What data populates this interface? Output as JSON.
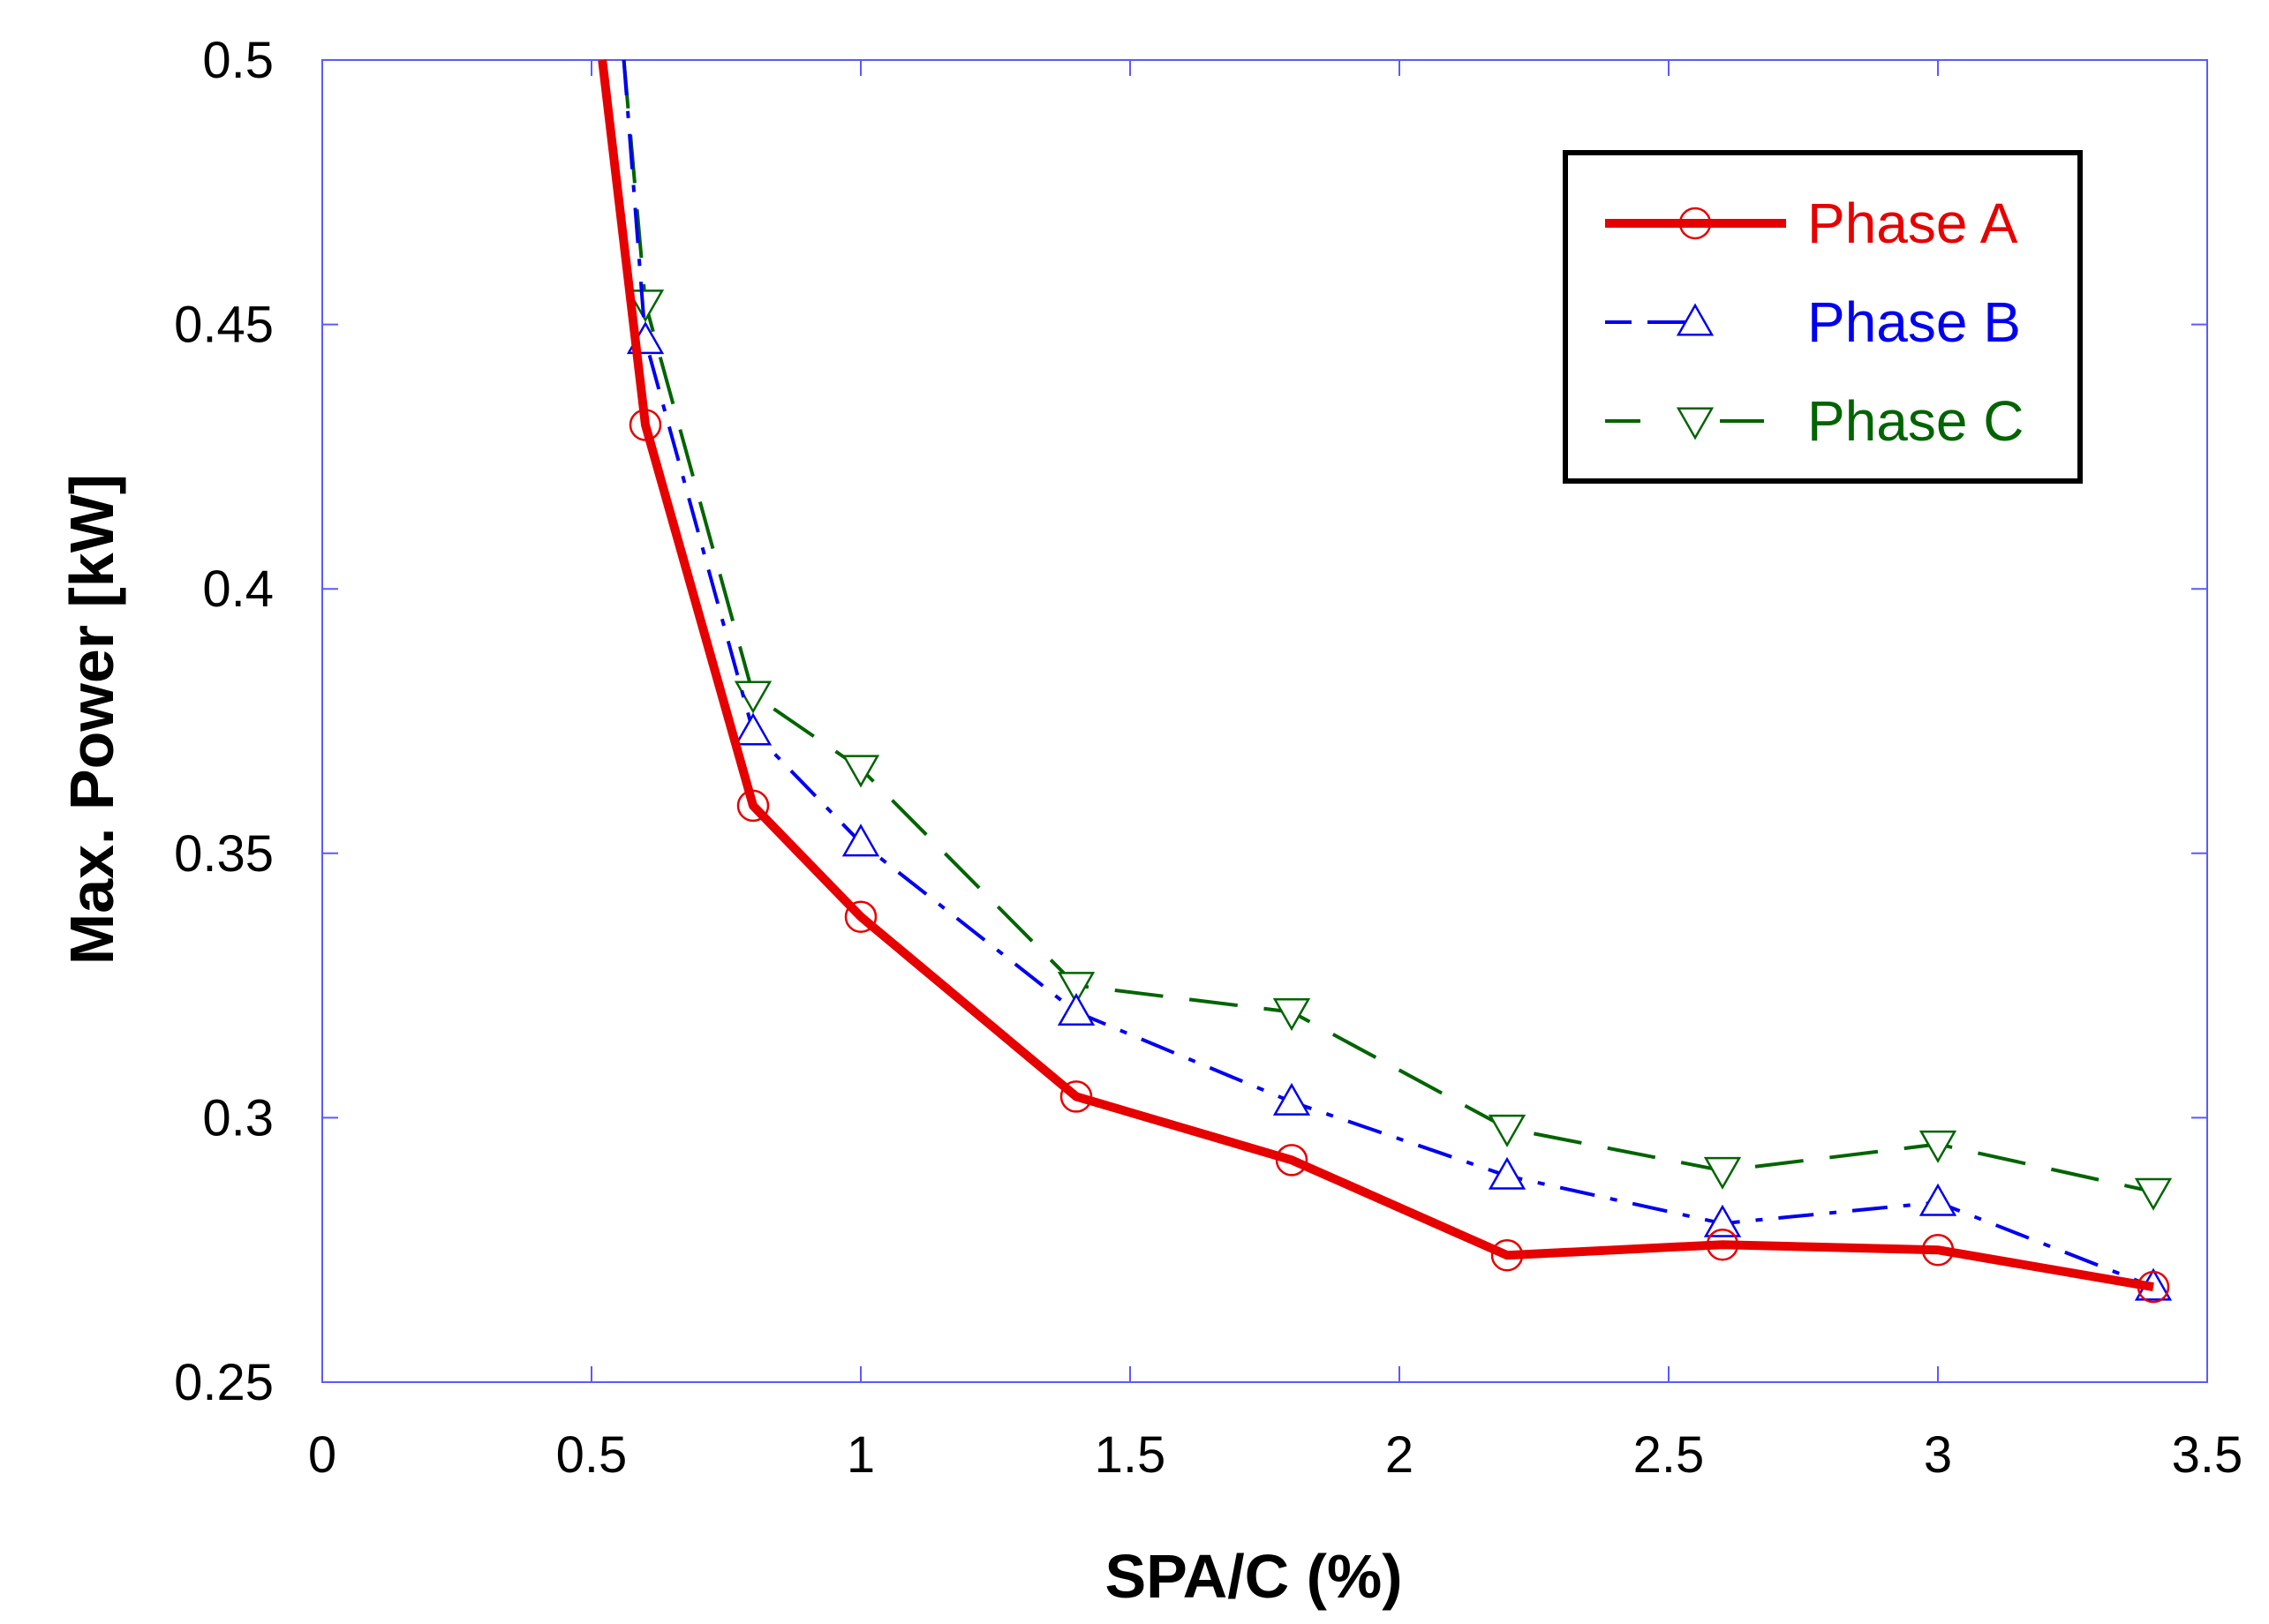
{
  "chart_data": {
    "type": "line",
    "title": "",
    "xlabel": "SPA/C (%)",
    "ylabel": "Max. Power [kW]",
    "xlim": [
      0,
      3.5
    ],
    "ylim": [
      0.25,
      0.5
    ],
    "xticks": [
      0,
      0.5,
      1,
      1.5,
      2,
      2.5,
      3,
      3.5
    ],
    "xtick_labels": [
      "0",
      "0.5",
      "1",
      "1.5",
      "2",
      "2.5",
      "3",
      "3.5"
    ],
    "yticks": [
      0.25,
      0.3,
      0.35,
      0.4,
      0.45,
      0.5
    ],
    "ytick_labels": [
      "0.25",
      "0.3",
      "0.35",
      "0.4",
      "0.45",
      "0.5"
    ],
    "grid": false,
    "legend_position": "top-right",
    "series": [
      {
        "name": "Phase A",
        "color": "#e60000",
        "marker": "circle",
        "line_style": "solid-thick",
        "x": [
          0.52,
          0.6,
          0.8,
          1.0,
          1.4,
          1.8,
          2.2,
          2.6,
          3.0,
          3.4
        ],
        "y": [
          0.5,
          0.431,
          0.359,
          0.338,
          0.304,
          0.292,
          0.274,
          0.276,
          0.275,
          0.268
        ],
        "marker_x": [
          0.6,
          0.8,
          1.0,
          1.4,
          1.8,
          2.2,
          2.6,
          3.0,
          3.4
        ],
        "marker_y": [
          0.431,
          0.359,
          0.338,
          0.304,
          0.292,
          0.274,
          0.276,
          0.275,
          0.268
        ]
      },
      {
        "name": "Phase B",
        "color": "#0000ee",
        "marker": "triangle-up",
        "line_style": "dash-dot",
        "x": [
          0.56,
          0.6,
          0.8,
          1.0,
          1.4,
          1.8,
          2.2,
          2.6,
          3.0,
          3.4
        ],
        "y": [
          0.5,
          0.447,
          0.373,
          0.352,
          0.32,
          0.303,
          0.289,
          0.28,
          0.284,
          0.268
        ],
        "marker_x": [
          0.6,
          0.8,
          1.0,
          1.4,
          1.8,
          2.2,
          2.6,
          3.0,
          3.4
        ],
        "marker_y": [
          0.447,
          0.373,
          0.352,
          0.32,
          0.303,
          0.289,
          0.28,
          0.284,
          0.268
        ]
      },
      {
        "name": "Phase C",
        "color": "#006400",
        "marker": "triangle-down",
        "line_style": "long-dash",
        "x": [
          0.56,
          0.6,
          0.8,
          1.0,
          1.4,
          1.8,
          2.2,
          2.6,
          3.0,
          3.4
        ],
        "y": [
          0.5,
          0.454,
          0.38,
          0.366,
          0.325,
          0.32,
          0.298,
          0.29,
          0.295,
          0.286
        ],
        "marker_x": [
          0.6,
          0.8,
          1.0,
          1.4,
          1.8,
          2.2,
          2.6,
          3.0,
          3.4
        ],
        "marker_y": [
          0.454,
          0.38,
          0.366,
          0.325,
          0.32,
          0.298,
          0.29,
          0.295,
          0.286
        ]
      }
    ]
  }
}
